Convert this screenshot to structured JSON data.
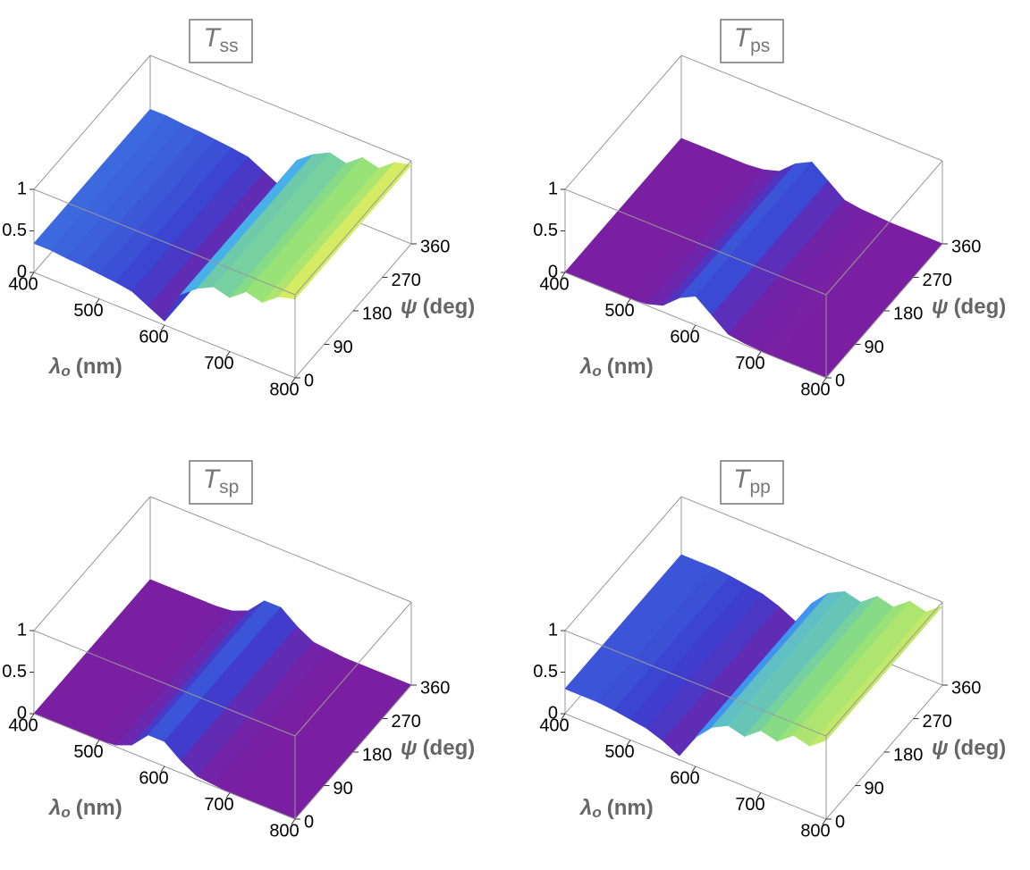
{
  "chart_data": [
    {
      "type": "surface",
      "title": "T",
      "title_subscript": "ss",
      "x": [
        400,
        425,
        450,
        475,
        500,
        525,
        550,
        575,
        600,
        625,
        650,
        675,
        700,
        725,
        750,
        775,
        800
      ],
      "values": [
        0.35,
        0.35,
        0.33,
        0.32,
        0.3,
        0.28,
        0.25,
        0.15,
        0.05,
        0.45,
        0.6,
        0.7,
        0.65,
        0.8,
        0.75,
        0.9,
        0.95
      ],
      "xlim": [
        400,
        800
      ],
      "ylim": [
        0,
        360
      ],
      "zlim": [
        0,
        1
      ],
      "xticks": [
        400,
        500,
        600,
        700,
        800
      ],
      "yticks": [
        0,
        90,
        180,
        270,
        360
      ],
      "zticks": [
        0,
        0.5,
        1
      ],
      "xlabel": "λ",
      "xlabel_subscript": "o",
      "xlabel_unit": "(nm)",
      "ylabel": "ψ",
      "ylabel_unit": "(deg)",
      "colormap": [
        "#7a1fa2",
        "#3b3fd0",
        "#3fa9f5",
        "#8fe07a",
        "#f5f05a"
      ]
    },
    {
      "type": "surface",
      "title": "T",
      "title_subscript": "ps",
      "x": [
        400,
        425,
        450,
        475,
        500,
        525,
        550,
        575,
        600,
        625,
        650,
        675,
        700,
        725,
        750,
        775,
        800
      ],
      "values": [
        0,
        0,
        0,
        0,
        0,
        0.02,
        0.08,
        0.25,
        0.35,
        0.2,
        0.05,
        0.02,
        0.01,
        0,
        0,
        0,
        0
      ],
      "xlim": [
        400,
        800
      ],
      "ylim": [
        0,
        360
      ],
      "zlim": [
        0,
        1
      ],
      "xticks": [
        400,
        500,
        600,
        700,
        800
      ],
      "yticks": [
        0,
        90,
        180,
        270,
        360
      ],
      "zticks": [
        0,
        0.5,
        1
      ],
      "xlabel": "λ",
      "xlabel_subscript": "o",
      "xlabel_unit": "(nm)",
      "ylabel": "ψ",
      "ylabel_unit": "(deg)",
      "colormap": [
        "#7a1fa2",
        "#3b3fd0",
        "#3fa9f5",
        "#8fe07a",
        "#f5f05a"
      ]
    },
    {
      "type": "surface",
      "title": "T",
      "title_subscript": "sp",
      "x": [
        400,
        425,
        450,
        475,
        500,
        525,
        550,
        575,
        600,
        625,
        650,
        675,
        700,
        725,
        750,
        775,
        800
      ],
      "values": [
        0,
        0,
        0,
        0,
        0,
        0.02,
        0.1,
        0.3,
        0.3,
        0.15,
        0.04,
        0.02,
        0,
        0,
        0,
        0,
        0
      ],
      "xlim": [
        400,
        800
      ],
      "ylim": [
        0,
        360
      ],
      "zlim": [
        0,
        1
      ],
      "xticks": [
        400,
        500,
        600,
        700,
        800
      ],
      "yticks": [
        0,
        90,
        180,
        270,
        360
      ],
      "zticks": [
        0,
        0.5,
        1
      ],
      "xlabel": "λ",
      "xlabel_subscript": "o",
      "xlabel_unit": "(nm)",
      "ylabel": "ψ",
      "ylabel_unit": "(deg)",
      "colormap": [
        "#7a1fa2",
        "#3b3fd0",
        "#3fa9f5",
        "#8fe07a",
        "#f5f05a"
      ]
    },
    {
      "type": "surface",
      "title": "T",
      "title_subscript": "pp",
      "x": [
        400,
        425,
        450,
        475,
        500,
        525,
        550,
        575,
        600,
        625,
        650,
        675,
        700,
        725,
        750,
        775,
        800
      ],
      "values": [
        0.3,
        0.3,
        0.3,
        0.28,
        0.25,
        0.22,
        0.15,
        0.05,
        0.35,
        0.55,
        0.65,
        0.6,
        0.75,
        0.7,
        0.85,
        0.8,
        0.95
      ],
      "xlim": [
        400,
        800
      ],
      "ylim": [
        0,
        360
      ],
      "zlim": [
        0,
        1
      ],
      "xticks": [
        400,
        500,
        600,
        700,
        800
      ],
      "yticks": [
        0,
        90,
        180,
        270,
        360
      ],
      "zticks": [
        0,
        0.5,
        1
      ],
      "xlabel": "λ",
      "xlabel_subscript": "o",
      "xlabel_unit": "(nm)",
      "ylabel": "ψ",
      "ylabel_unit": "(deg)",
      "colormap": [
        "#7a1fa2",
        "#3b3fd0",
        "#3fa9f5",
        "#8fe07a",
        "#f5f05a"
      ]
    }
  ]
}
